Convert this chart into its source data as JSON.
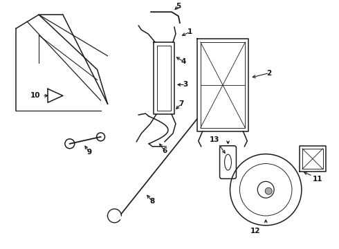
{
  "bg_color": "#ffffff",
  "line_color": "#1a1a1a",
  "label_color": "#111111",
  "figsize": [
    4.9,
    3.6
  ],
  "dpi": 100
}
